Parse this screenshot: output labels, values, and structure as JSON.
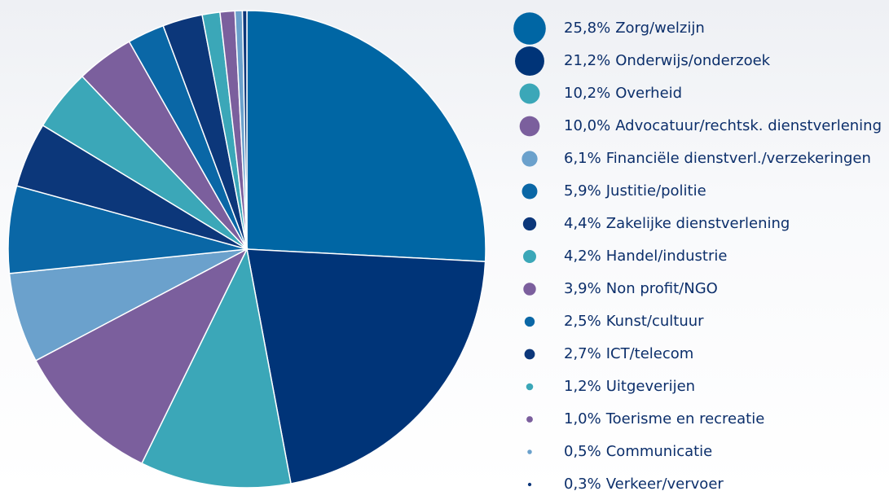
{
  "chart_data": {
    "type": "pie",
    "categories": [
      "Zorg/welzijn",
      "Onderwijs/onderzoek",
      "Overheid",
      "Advocatuur/rechtsk. dienstverlening",
      "Financiële dienstverl./verzekeringen",
      "Justitie/politie",
      "Zakelijke dienstverlening",
      "Handel/industrie",
      "Non profit/NGO",
      "Kunst/cultuur",
      "ICT/telecom",
      "Uitgeverijen",
      "Toerisme en recreatie",
      "Communicatie",
      "Verkeer/vervoer"
    ],
    "values": [
      25.8,
      21.2,
      10.2,
      10.0,
      6.1,
      5.9,
      4.4,
      4.2,
      3.9,
      2.5,
      2.7,
      1.2,
      1.0,
      0.5,
      0.3
    ],
    "value_labels": [
      "25,8%",
      "21,2%",
      "10,2%",
      "10,0%",
      "6,1%",
      "5,9%",
      "4,4%",
      "4,2%",
      "3,9%",
      "2,5%",
      "2,7%",
      "1,2%",
      "1,0%",
      "0,5%",
      "0,3%"
    ],
    "colors": [
      "#0066a4",
      "#003478",
      "#3ba7b8",
      "#7b5f9d",
      "#6ba1cc",
      "#0a67a6",
      "#0c377a",
      "#3ba7b8",
      "#7b5f9d",
      "#0a67a6",
      "#0c377a",
      "#3ba7b8",
      "#7b5f9d",
      "#6ba1cc",
      "#0c377a"
    ]
  }
}
